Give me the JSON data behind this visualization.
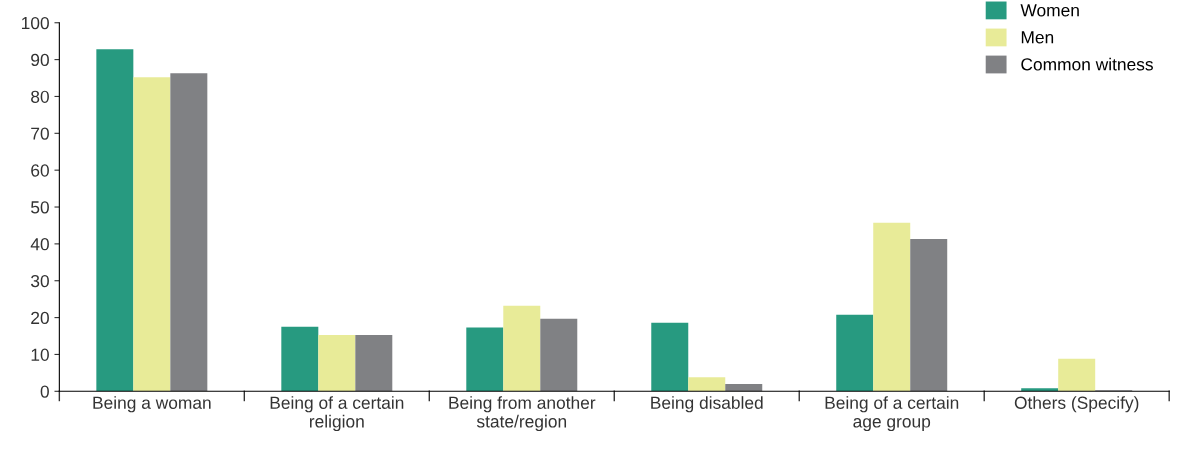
{
  "chart_data": {
    "type": "bar",
    "categories": [
      "Being a woman",
      "Being of a certain\nreligion",
      "Being from another\nstate/region",
      "Being disabled",
      "Being of a certain\nage group",
      "Others (Specify)"
    ],
    "series": [
      {
        "name": "Women",
        "color": "#279a80",
        "values": [
          92.8,
          17.5,
          17.3,
          18.6,
          20.8,
          0.8
        ]
      },
      {
        "name": "Men",
        "color": "#e8eb98",
        "values": [
          85.2,
          15.3,
          23.2,
          3.8,
          45.7,
          8.8
        ]
      },
      {
        "name": "Common witness",
        "color": "#808184",
        "values": [
          86.3,
          15.3,
          19.7,
          2.0,
          41.3,
          0.3
        ]
      }
    ],
    "ylim": [
      0,
      100
    ],
    "yticks": [
      0,
      10,
      20,
      30,
      40,
      50,
      60,
      70,
      80,
      90,
      100
    ],
    "grid": false,
    "legend": "top right"
  }
}
